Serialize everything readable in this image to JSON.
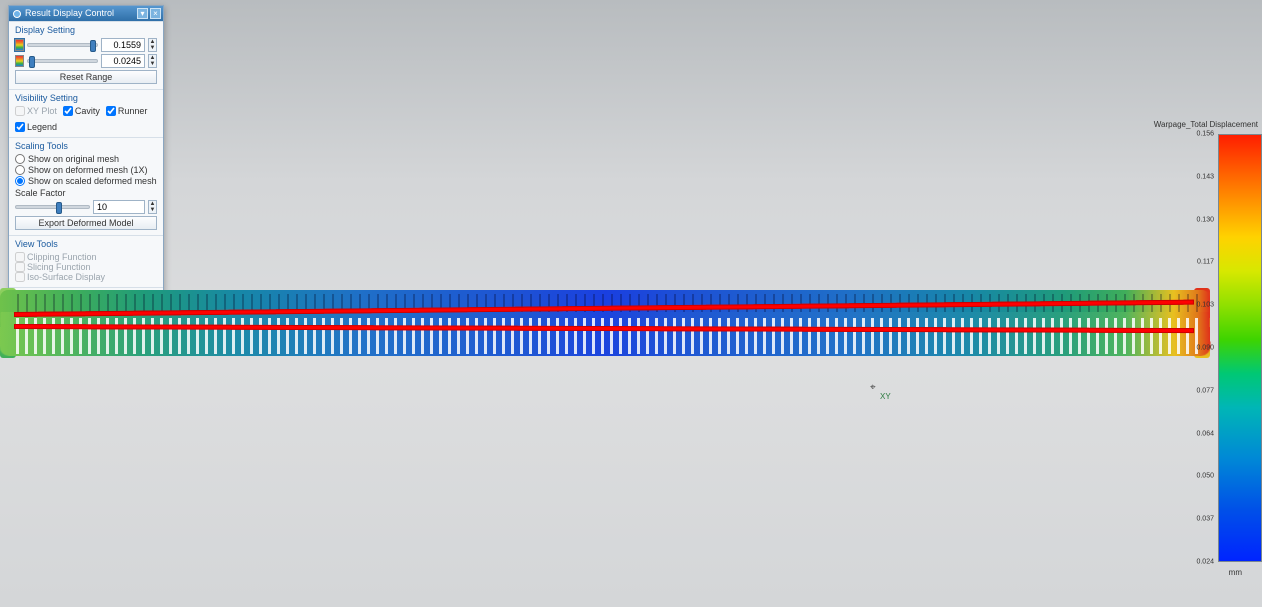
{
  "panel": {
    "title": "Result Display Control",
    "sections": {
      "display": {
        "title": "Display Setting",
        "max_value": "0.1559",
        "max_slider_pos": 0.9,
        "min_value": "0.0245",
        "min_slider_pos": 0.02,
        "reset_label": "Reset Range"
      },
      "visibility": {
        "title": "Visibility Setting",
        "xyplot": {
          "label": "XY Plot",
          "checked": false,
          "enabled": false
        },
        "cavity": {
          "label": "Cavity",
          "checked": true
        },
        "runner": {
          "label": "Runner",
          "checked": true
        },
        "legend": {
          "label": "Legend",
          "checked": true
        }
      },
      "scaling": {
        "title": "Scaling Tools",
        "opts": [
          {
            "label": "Show on original mesh",
            "checked": false
          },
          {
            "label": "Show on deformed mesh (1X)",
            "checked": false
          },
          {
            "label": "Show on scaled deformed mesh",
            "checked": true
          }
        ],
        "scale_factor_label": "Scale Factor",
        "scale_factor_value": "10",
        "scale_slider_pos": 0.55,
        "export_label": "Export Deformed Model"
      },
      "view": {
        "title": "View Tools",
        "items": [
          {
            "label": "Clipping Function",
            "enabled": false
          },
          {
            "label": "Slicing Function",
            "enabled": false
          },
          {
            "label": "Iso-Surface Display",
            "enabled": false
          }
        ]
      }
    },
    "close_label": "Close"
  },
  "legend": {
    "title": "Warpage_Total Displacement",
    "unit": "mm",
    "ticks": [
      {
        "pos": 0.0,
        "label": "0.156"
      },
      {
        "pos": 0.1,
        "label": "0.143"
      },
      {
        "pos": 0.2,
        "label": "0.130"
      },
      {
        "pos": 0.3,
        "label": "0.117"
      },
      {
        "pos": 0.4,
        "label": "0.103"
      },
      {
        "pos": 0.5,
        "label": "0.090"
      },
      {
        "pos": 0.6,
        "label": "0.077"
      },
      {
        "pos": 0.7,
        "label": "0.064"
      },
      {
        "pos": 0.8,
        "label": "0.050"
      },
      {
        "pos": 0.9,
        "label": "0.037"
      },
      {
        "pos": 1.0,
        "label": "0.024"
      }
    ],
    "colors": {
      "top": "#ff1e00",
      "q1": "#ffd200",
      "mid": "#3ed400",
      "q3": "#0088d6",
      "bottom": "#0024ff"
    }
  },
  "viewport": {
    "triad_label": "XY",
    "ref_line_color": "#ff0000",
    "beam_gradient_left": "#6fc24b",
    "beam_gradient_center": "#1a3fe0",
    "beam_gradient_right": "#e0301a"
  }
}
